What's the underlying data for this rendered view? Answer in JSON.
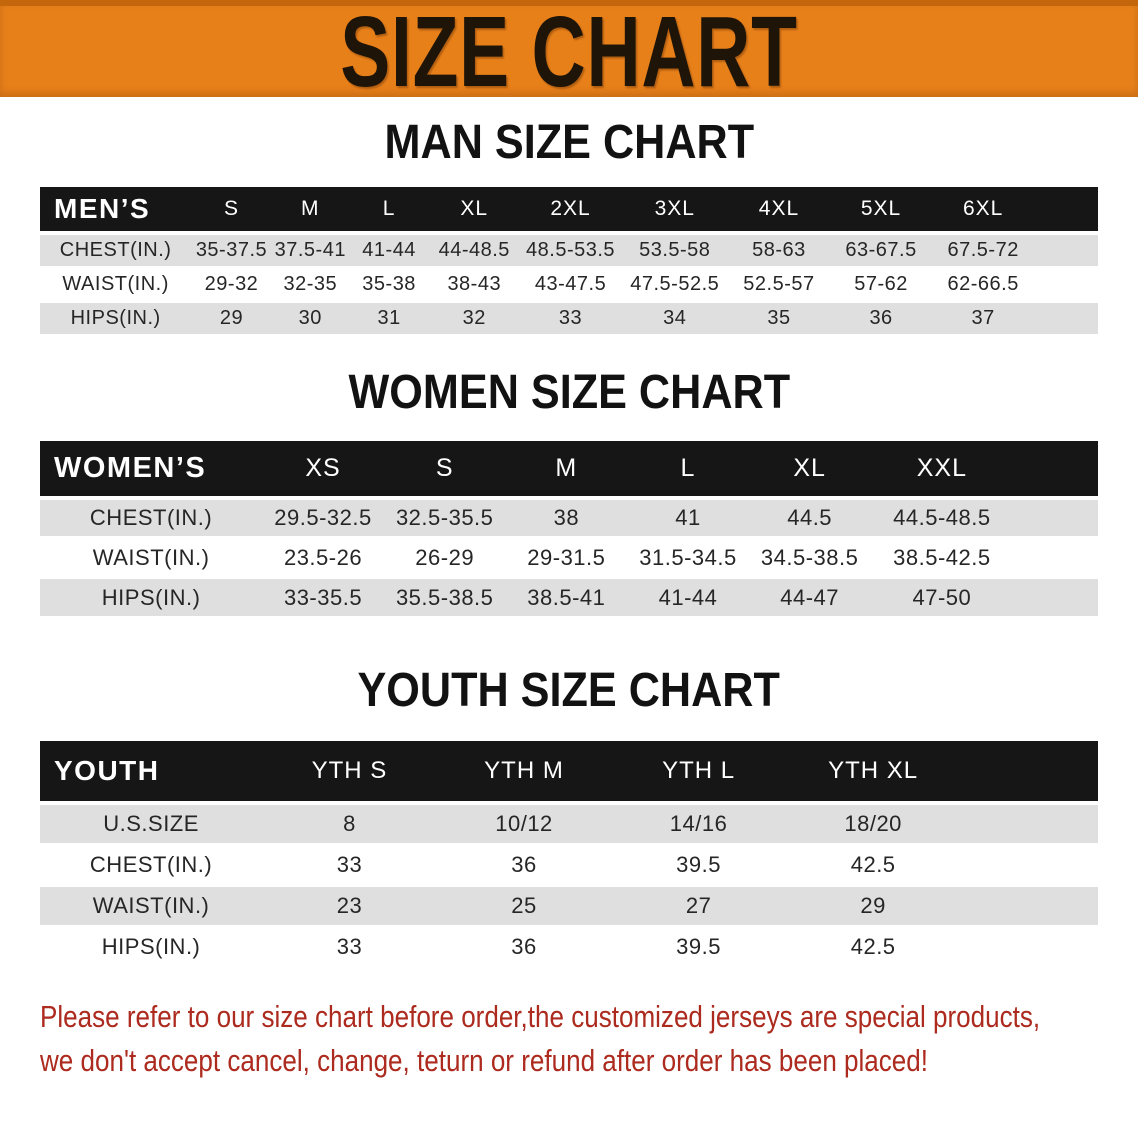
{
  "banner": {
    "title": "SIZE CHART"
  },
  "colors": {
    "banner_bg": "#E8801A",
    "banner_text": "#1E1408",
    "table_header_bg": "#161616",
    "table_header_text": "#FFFFFF",
    "row_stripe": "#DFDFDF",
    "row_white": "#FFFFFF",
    "body_text": "#262626",
    "disclaimer_text": "#AC2A1E"
  },
  "sections": {
    "men": {
      "heading": "MAN SIZE CHART",
      "corner_label": "MEN’S",
      "sizes": [
        "S",
        "M",
        "L",
        "XL",
        "2XL",
        "3XL",
        "4XL",
        "5XL",
        "6XL"
      ],
      "rows": [
        {
          "label": "CHEST(IN.)",
          "values": [
            "35-37.5",
            "37.5-41",
            "41-44",
            "44-48.5",
            "48.5-53.5",
            "53.5-58",
            "58-63",
            "63-67.5",
            "67.5-72"
          ]
        },
        {
          "label": "WAIST(IN.)",
          "values": [
            "29-32",
            "32-35",
            "35-38",
            "38-43",
            "43-47.5",
            "47.5-52.5",
            "52.5-57",
            "57-62",
            "62-66.5"
          ]
        },
        {
          "label": "HIPS(IN.)",
          "values": [
            "29",
            "30",
            "31",
            "32",
            "33",
            "34",
            "35",
            "36",
            "37"
          ]
        }
      ]
    },
    "women": {
      "heading": "WOMEN SIZE CHART",
      "corner_label": "WOMEN’S",
      "sizes": [
        "XS",
        "S",
        "M",
        "L",
        "XL",
        "XXL"
      ],
      "rows": [
        {
          "label": "CHEST(IN.)",
          "values": [
            "29.5-32.5",
            "32.5-35.5",
            "38",
            "41",
            "44.5",
            "44.5-48.5"
          ]
        },
        {
          "label": "WAIST(IN.)",
          "values": [
            "23.5-26",
            "26-29",
            "29-31.5",
            "31.5-34.5",
            "34.5-38.5",
            "38.5-42.5"
          ]
        },
        {
          "label": "HIPS(IN.)",
          "values": [
            "33-35.5",
            "35.5-38.5",
            "38.5-41",
            "41-44",
            "44-47",
            "47-50"
          ]
        }
      ]
    },
    "youth": {
      "heading": "YOUTH SIZE CHART",
      "corner_label": "YOUTH",
      "sizes": [
        "YTH S",
        "YTH M",
        "YTH L",
        "YTH XL"
      ],
      "rows": [
        {
          "label": "U.S.SIZE",
          "values": [
            "8",
            "10/12",
            "14/16",
            "18/20"
          ]
        },
        {
          "label": "CHEST(IN.)",
          "values": [
            "33",
            "36",
            "39.5",
            "42.5"
          ]
        },
        {
          "label": "WAIST(IN.)",
          "values": [
            "23",
            "25",
            "27",
            "29"
          ]
        },
        {
          "label": "HIPS(IN.)",
          "values": [
            "33",
            "36",
            "39.5",
            "42.5"
          ]
        }
      ]
    }
  },
  "disclaimer": {
    "line1": "Please refer to our size chart before order,the customized jerseys are special products,",
    "line2": "we don't accept cancel, change, teturn or refund after order has been placed!"
  }
}
